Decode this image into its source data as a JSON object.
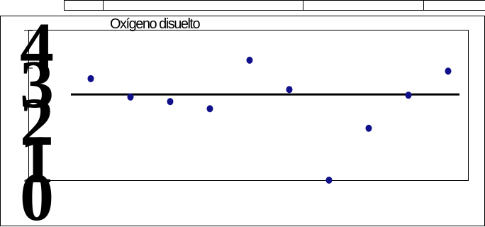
{
  "chart_data": {
    "type": "scatter",
    "title": "Oxígeno disuelto",
    "categories": [
      null,
      null,
      null,
      null,
      null,
      null,
      null,
      null,
      null,
      null
    ],
    "values": [
      2.72,
      2.23,
      2.11,
      1.92,
      3.21,
      2.43,
      0.02,
      1.4,
      2.28,
      2.92
    ],
    "color": "#10108a",
    "reference_line": 2.3,
    "ylim": [
      0,
      4
    ],
    "yticks": [
      0,
      1,
      2,
      3,
      4
    ],
    "grid": false
  }
}
